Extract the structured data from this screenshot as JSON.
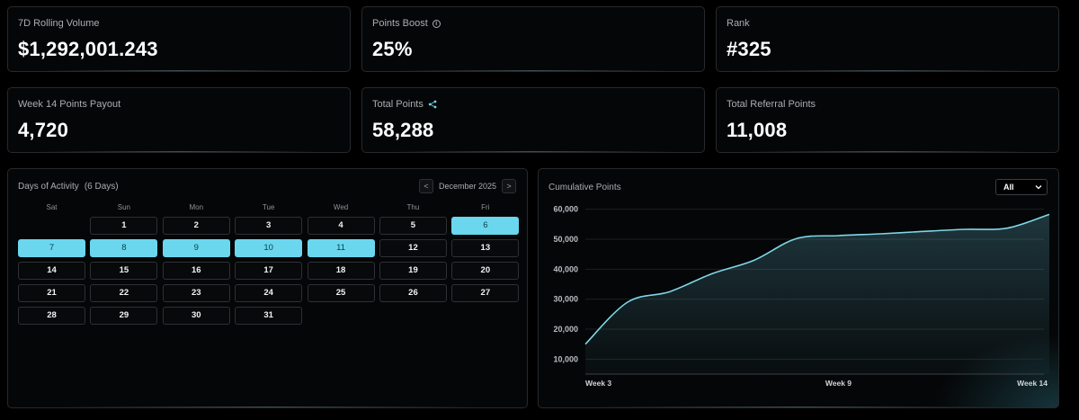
{
  "stats": [
    {
      "label": "7D Rolling Volume",
      "value": "$1,292,001.243"
    },
    {
      "label": "Points Boost",
      "value": "25%"
    },
    {
      "label": "Rank",
      "value": "#325"
    },
    {
      "label": "Week 14 Points Payout",
      "value": "4,720"
    },
    {
      "label": "Total Points",
      "value": "58,288"
    },
    {
      "label": "Total Referral Points",
      "value": "11,008"
    }
  ],
  "calendar": {
    "title": "Days of Activity",
    "count": "(6 Days)",
    "month": "December 2025",
    "prev": "<",
    "next": ">",
    "weekdays": [
      "Sat",
      "Sun",
      "Mon",
      "Tue",
      "Wed",
      "Thu",
      "Fri"
    ],
    "leading_blanks": 1,
    "days": [
      "1",
      "2",
      "3",
      "4",
      "5",
      "6",
      "7",
      "8",
      "9",
      "10",
      "11",
      "12",
      "13",
      "14",
      "15",
      "16",
      "17",
      "18",
      "19",
      "20",
      "21",
      "22",
      "23",
      "24",
      "25",
      "26",
      "27",
      "28",
      "29",
      "30",
      "31"
    ],
    "active_days": [
      "6",
      "7",
      "8",
      "9",
      "10",
      "11"
    ]
  },
  "chart_panel": {
    "title": "Cumulative Points",
    "filter_value": "All"
  },
  "colors": {
    "accent": "#6ad7ee",
    "line": "#7fd6e8"
  },
  "chart_data": {
    "type": "area",
    "title": "Cumulative Points",
    "x": [
      3,
      4,
      5,
      6,
      7,
      8,
      9,
      10,
      11,
      12,
      13,
      14
    ],
    "values": [
      15000,
      29000,
      32500,
      38500,
      43000,
      50200,
      51200,
      51800,
      52600,
      53300,
      53700,
      58300
    ],
    "xticks": [
      {
        "x": 3,
        "label": "Week 3"
      },
      {
        "x": 9,
        "label": "Week 9"
      },
      {
        "x": 14,
        "label": "Week 14"
      }
    ],
    "yticks": [
      {
        "v": 10000,
        "label": "10,000"
      },
      {
        "v": 20000,
        "label": "20,000"
      },
      {
        "v": 30000,
        "label": "30,000"
      },
      {
        "v": 40000,
        "label": "40,000"
      },
      {
        "v": 50000,
        "label": "50,000"
      },
      {
        "v": 60000,
        "label": "60,000"
      }
    ],
    "xlim": [
      3,
      14
    ],
    "ylim": [
      5000,
      62000
    ],
    "grid": true,
    "xlabel": "",
    "ylabel": ""
  }
}
